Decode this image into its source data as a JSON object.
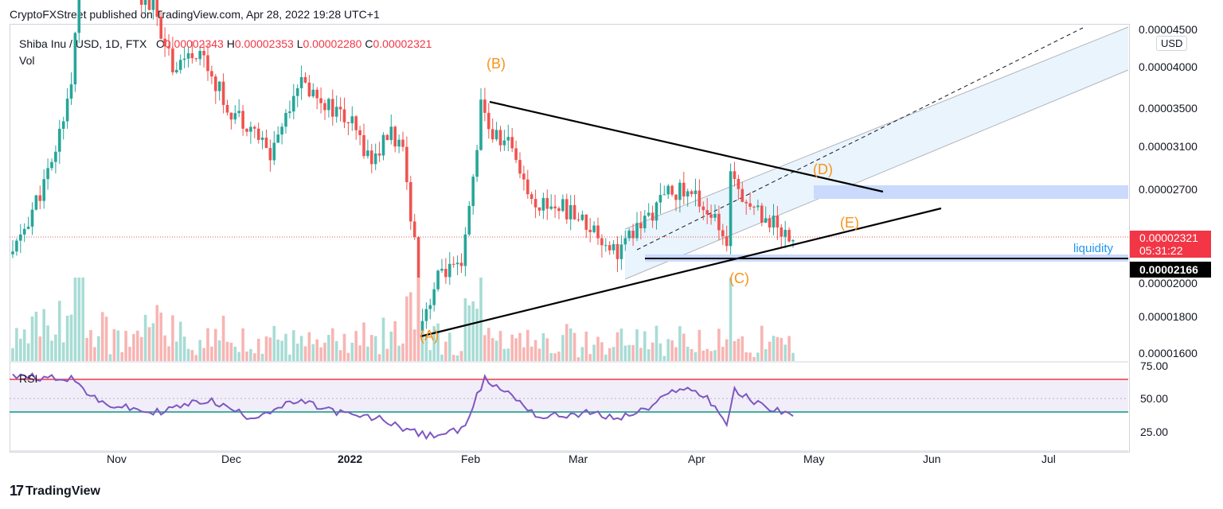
{
  "header": {
    "published": "CryptoFXStreet published on TradingView.com, Apr 28, 2022 19:28 UTC+1",
    "symbol": "Shiba Inu / USD, 1D, FTX",
    "o_label": "O",
    "o_value": "0.00002343",
    "h_label": "H",
    "h_value": "0.00002353",
    "l_label": "L",
    "l_value": "0.00002280",
    "c_label": "C",
    "c_value": "0.00002321",
    "vol_label": "Vol"
  },
  "currency_button": "USD",
  "footer": {
    "brand": "TradingView",
    "logo_glyph": "17"
  },
  "colors": {
    "up": "#26a69a",
    "down": "#ef5350",
    "wave_label": "#f7931a",
    "rsi": "#7e57c2",
    "overbought": "#f23645",
    "oversold": "#089981",
    "zone": "#c9dafc",
    "channel": "#e3f0fc"
  },
  "annotations": {
    "wave_A": "(A)",
    "wave_B": "(B)",
    "wave_C": "(C)",
    "wave_D": "(D)",
    "wave_E": "(E)",
    "liquidity": "liquidity"
  },
  "price_labels": {
    "last_price": "0.00002321",
    "countdown": "05:31:22",
    "level": "0.00002166"
  },
  "rsi_pane": {
    "label": "RSI",
    "ticks": [
      "75.00",
      "50.00",
      "25.00"
    ],
    "overbought": 65,
    "oversold": 40
  },
  "chart_data": {
    "type": "candlestick",
    "title": "Shiba Inu / USD, 1D, FTX",
    "xlabel": "",
    "ylabel": "",
    "x_ticks": [
      "Nov",
      "Dec",
      "2022",
      "Feb",
      "Mar",
      "Apr",
      "May",
      "Jun",
      "Jul"
    ],
    "y_ticks": [
      "0.00004500",
      "0.00004000",
      "0.00003500",
      "0.00003100",
      "0.00002700",
      "0.00002000",
      "0.00001800",
      "0.00001600"
    ],
    "y_scale": "log",
    "ylim": [
      1.55e-05,
      4.55e-05
    ],
    "grid": false,
    "series": [
      {
        "name": "Shiba Inu / USD",
        "approx_closes": [
          [
            "2021-10-10",
            2.2e-05
          ],
          [
            "2021-10-20",
            2.9e-05
          ],
          [
            "2021-10-25",
            3.8e-05
          ],
          [
            "2021-10-28",
            6e-05
          ],
          [
            "2021-11-05",
            5.2e-05
          ],
          [
            "2021-11-15",
            4.8e-05
          ],
          [
            "2021-11-20",
            4e-05
          ],
          [
            "2021-11-27",
            4.2e-05
          ],
          [
            "2021-12-04",
            3.5e-05
          ],
          [
            "2021-12-10",
            3.3e-05
          ],
          [
            "2021-12-15",
            3e-05
          ],
          [
            "2021-12-22",
            3.8e-05
          ],
          [
            "2021-12-28",
            3.6e-05
          ],
          [
            "2022-01-05",
            3.3e-05
          ],
          [
            "2022-01-10",
            2.95e-05
          ],
          [
            "2022-01-15",
            3.25e-05
          ],
          [
            "2022-01-18",
            3e-05
          ],
          [
            "2022-01-21",
            2.3e-05
          ],
          [
            "2022-01-22",
            1.75e-05
          ],
          [
            "2022-01-28",
            2.1e-05
          ],
          [
            "2022-02-02",
            2.08e-05
          ],
          [
            "2022-02-05",
            2.8e-05
          ],
          [
            "2022-02-07",
            3.5e-05
          ],
          [
            "2022-02-10",
            3.2e-05
          ],
          [
            "2022-02-15",
            3.1e-05
          ],
          [
            "2022-02-20",
            2.6e-05
          ],
          [
            "2022-02-28",
            2.55e-05
          ],
          [
            "2022-03-07",
            2.4e-05
          ],
          [
            "2022-03-14",
            2.22e-05
          ],
          [
            "2022-03-21",
            2.45e-05
          ],
          [
            "2022-03-28",
            2.7e-05
          ],
          [
            "2022-04-03",
            2.65e-05
          ],
          [
            "2022-04-08",
            2.45e-05
          ],
          [
            "2022-04-11",
            2.2e-05
          ],
          [
            "2022-04-12",
            2.9e-05
          ],
          [
            "2022-04-16",
            2.6e-05
          ],
          [
            "2022-04-22",
            2.45e-05
          ],
          [
            "2022-04-28",
            2.32e-05
          ]
        ]
      }
    ],
    "levels": {
      "supply_zone": [
        2.62e-05,
        2.74e-05
      ],
      "liquidity_zone": [
        2.16e-05,
        2.19e-05
      ],
      "support": 2.166e-05,
      "last": 2.321e-05
    },
    "rsi": {
      "ylim": [
        20,
        80
      ],
      "approx_values": [
        [
          "2021-10-10",
          70
        ],
        [
          "2021-10-25",
          69
        ],
        [
          "2021-11-01",
          52
        ],
        [
          "2021-11-15",
          45
        ],
        [
          "2021-11-29",
          54
        ],
        [
          "2021-12-10",
          42
        ],
        [
          "2021-12-22",
          53
        ],
        [
          "2022-01-05",
          43
        ],
        [
          "2022-01-12",
          41
        ],
        [
          "2022-01-24",
          29
        ],
        [
          "2022-02-02",
          33
        ],
        [
          "2022-02-08",
          68
        ],
        [
          "2022-02-15",
          57
        ],
        [
          "2022-02-22",
          42
        ],
        [
          "2022-03-07",
          45
        ],
        [
          "2022-03-14",
          41
        ],
        [
          "2022-03-22",
          48
        ],
        [
          "2022-03-30",
          63
        ],
        [
          "2022-04-06",
          56
        ],
        [
          "2022-04-11",
          38
        ],
        [
          "2022-04-13",
          60
        ],
        [
          "2022-04-20",
          50
        ],
        [
          "2022-04-28",
          44
        ]
      ]
    }
  }
}
